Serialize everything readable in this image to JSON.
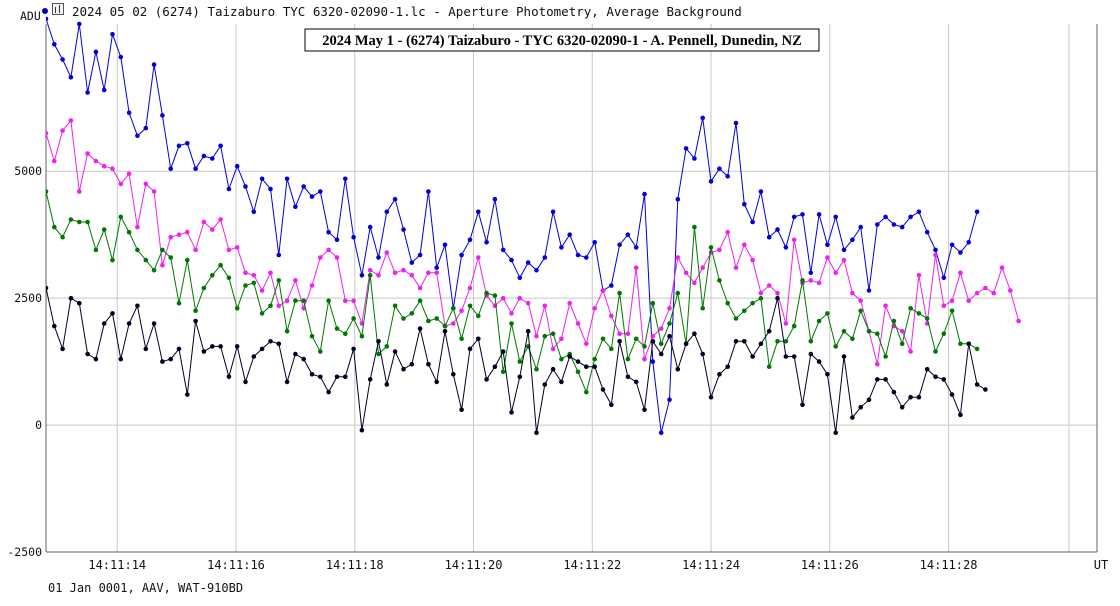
{
  "window": {
    "file_title": "2024 05 02 (6274) Taizaburo TYC 6320-02090-1.lc - Aperture Photometry, Average Background",
    "footer": "01 Jan 0001, AAV, WAT-910BD"
  },
  "colors": {
    "background": "#ffffff",
    "grid": "#c8c8c8",
    "axis": "#606060",
    "text": "#111111",
    "blue": "#0000dd",
    "magenta": "#ee22ee",
    "green": "#007700",
    "black": "#000022"
  },
  "chart_data": {
    "type": "line",
    "title": "2024 May 1 - (6274) Taizaburo - TYC 6320-02090-1 - A. Pennell, Dunedin, NZ",
    "ylabel": "ADU",
    "xlabel": "UT",
    "ylim": [
      -2500,
      7900
    ],
    "xlim": [
      12.8,
      30.5
    ],
    "yticks": [
      -2500,
      0,
      2500,
      5000
    ],
    "xticks": [
      {
        "x": 14.0,
        "label": "14:11:14"
      },
      {
        "x": 16.0,
        "label": "14:11:16"
      },
      {
        "x": 18.0,
        "label": "14:11:18"
      },
      {
        "x": 20.0,
        "label": "14:11:20"
      },
      {
        "x": 22.0,
        "label": "14:11:22"
      },
      {
        "x": 24.0,
        "label": "14:11:24"
      },
      {
        "x": 26.0,
        "label": "14:11:26"
      },
      {
        "x": 28.0,
        "label": "14:11:28"
      }
    ],
    "grid": true,
    "x_start": 12.8,
    "x_step": 0.14,
    "series": [
      {
        "color": "#0000dd",
        "values": [
          8000,
          7500,
          7200,
          6850,
          7900,
          6550,
          7350,
          6600,
          7700,
          7250,
          6150,
          5700,
          5850,
          7100,
          6100,
          5050,
          5500,
          5550,
          5050,
          5300,
          5250,
          5500,
          4650,
          5100,
          4700,
          4200,
          4850,
          4650,
          3350,
          4850,
          4300,
          4700,
          4500,
          4600,
          3800,
          3650,
          4850,
          3700,
          2950,
          3900,
          3300,
          4200,
          4450,
          3850,
          3200,
          3350,
          4600,
          3100,
          3550,
          2300,
          3350,
          3650,
          4200,
          3600,
          4450,
          3450,
          3250,
          2900,
          3200,
          3050,
          3300,
          4200,
          3500,
          3750,
          3350,
          3300,
          3600,
          2650,
          2750,
          3550,
          3750,
          3500,
          4550,
          1250,
          -150,
          500,
          4450,
          5450,
          5250,
          6050,
          4800,
          5050,
          4900,
          5950,
          4350,
          4000,
          4600,
          3700,
          3850,
          3500,
          4100,
          4150,
          3000,
          4150,
          3550,
          4100,
          3450,
          3650,
          3900,
          2650,
          3950,
          4100,
          3950,
          3900,
          4100,
          4200,
          3800,
          3450,
          2900,
          3550,
          3400,
          3600,
          4200
        ]
      },
      {
        "color": "#ee22ee",
        "values": [
          5750,
          5200,
          5800,
          6000,
          4600,
          5350,
          5200,
          5100,
          5050,
          4750,
          4950,
          3900,
          4750,
          4600,
          3150,
          3700,
          3750,
          3800,
          3450,
          4000,
          3850,
          4050,
          3450,
          3500,
          3000,
          2950,
          2650,
          3000,
          2350,
          2450,
          2850,
          2300,
          2750,
          3300,
          3450,
          3300,
          2450,
          2450,
          2000,
          3050,
          2950,
          3400,
          3000,
          3050,
          2950,
          2700,
          3000,
          3000,
          1950,
          2000,
          2250,
          2700,
          3300,
          2550,
          2350,
          2500,
          2200,
          2500,
          2400,
          1750,
          2350,
          1500,
          1700,
          2400,
          2000,
          1600,
          2300,
          2650,
          2150,
          1800,
          1800,
          3100,
          1300,
          1750,
          1900,
          2300,
          3300,
          3000,
          2800,
          3100,
          3400,
          3450,
          3800,
          3100,
          3550,
          3250,
          2600,
          2750,
          2600,
          2000,
          3650,
          2800,
          2850,
          2800,
          3300,
          3000,
          3250,
          2600,
          2450,
          1850,
          1200,
          2350,
          1950,
          1850,
          1450,
          2950,
          2000,
          3350,
          2350,
          2450,
          3000,
          2450,
          2600,
          2700,
          2600,
          3100,
          2650,
          2050
        ]
      },
      {
        "color": "#007700",
        "values": [
          4600,
          3900,
          3700,
          4050,
          4000,
          4000,
          3450,
          3850,
          3250,
          4100,
          3800,
          3450,
          3250,
          3050,
          3450,
          3300,
          2400,
          3250,
          2250,
          2700,
          2950,
          3150,
          2900,
          2300,
          2750,
          2800,
          2200,
          2350,
          2850,
          1850,
          2450,
          2450,
          1750,
          1450,
          2450,
          1900,
          1800,
          2100,
          1750,
          2950,
          1400,
          1550,
          2350,
          2100,
          2200,
          2450,
          2050,
          2100,
          1950,
          2300,
          1700,
          2350,
          2150,
          2600,
          2550,
          1050,
          2000,
          1250,
          1550,
          1100,
          1750,
          1800,
          1300,
          1400,
          1050,
          650,
          1300,
          1700,
          1500,
          2600,
          1300,
          1700,
          1550,
          2400,
          1600,
          2000,
          2600,
          1600,
          3900,
          2300,
          3500,
          2850,
          2400,
          2100,
          2250,
          2400,
          2500,
          1150,
          1650,
          1650,
          1950,
          2850,
          1650,
          2050,
          2200,
          1550,
          1850,
          1700,
          2250,
          1850,
          1800,
          1350,
          2050,
          1600,
          2300,
          2200,
          2100,
          1450,
          1800,
          2250,
          1600,
          1600,
          1500
        ]
      },
      {
        "color": "#000022",
        "values": [
          2700,
          1950,
          1500,
          2500,
          2400,
          1400,
          1300,
          2000,
          2200,
          1300,
          2000,
          2350,
          1500,
          2000,
          1250,
          1300,
          1500,
          600,
          2050,
          1450,
          1550,
          1550,
          950,
          1550,
          850,
          1350,
          1500,
          1650,
          1600,
          850,
          1400,
          1300,
          1000,
          950,
          650,
          950,
          950,
          1500,
          -100,
          900,
          1650,
          800,
          1450,
          1100,
          1200,
          1900,
          1200,
          850,
          1850,
          1000,
          300,
          1500,
          1700,
          900,
          1150,
          1450,
          250,
          950,
          1850,
          -150,
          800,
          1100,
          850,
          1350,
          1250,
          1150,
          1150,
          700,
          400,
          1650,
          950,
          850,
          300,
          1650,
          1400,
          1750,
          1100,
          1600,
          1800,
          1400,
          550,
          1000,
          1150,
          1650,
          1650,
          1350,
          1600,
          1850,
          2500,
          1350,
          1350,
          400,
          1400,
          1250,
          1000,
          -150,
          1350,
          150,
          350,
          500,
          900,
          900,
          650,
          350,
          550,
          550,
          1100,
          950,
          900,
          600,
          200,
          1600,
          800,
          700
        ]
      }
    ]
  }
}
